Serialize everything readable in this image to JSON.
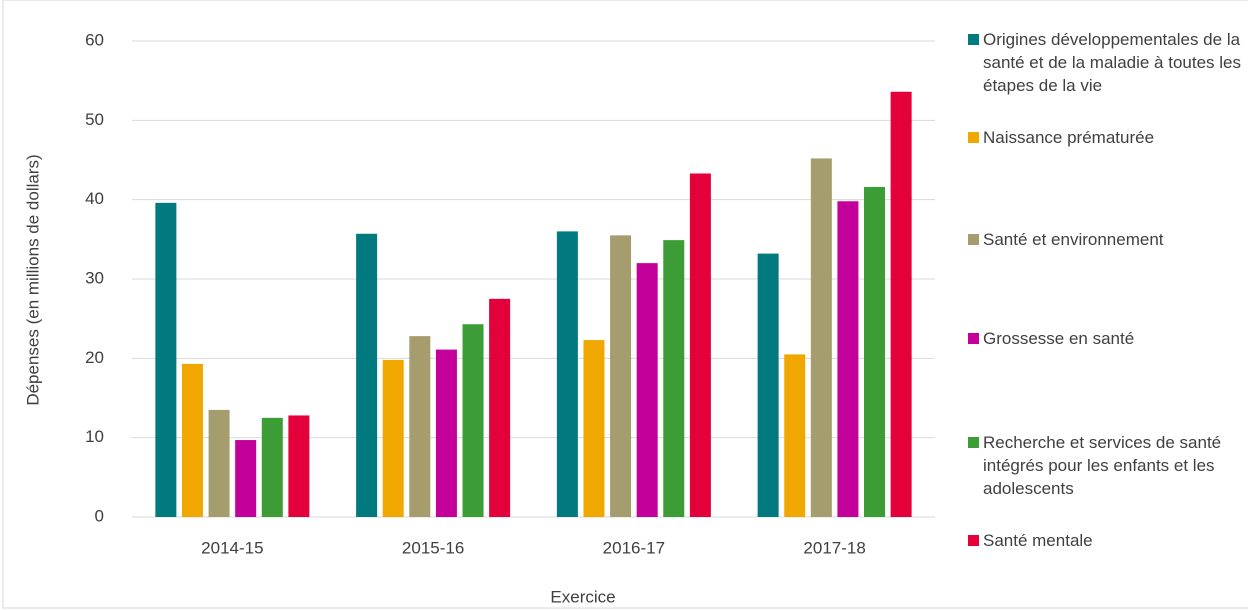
{
  "chart_data": {
    "type": "bar",
    "x_label": "Exercice",
    "y_label": "Dépenses (en millions de dollars)",
    "categories": [
      "2014-15",
      "2015-16",
      "2016-17",
      "2017-18"
    ],
    "series": [
      {
        "name": "Origines développementales de la santé et de la maladie à toutes les étapes de la vie",
        "color": "#00797f",
        "values": [
          39.6,
          35.7,
          36.0,
          33.2
        ]
      },
      {
        "name": "Naissance prématurée",
        "color": "#f0a800",
        "values": [
          19.3,
          19.8,
          22.3,
          20.5
        ]
      },
      {
        "name": "Santé et environnement",
        "color": "#a59d6e",
        "values": [
          13.5,
          22.8,
          35.5,
          45.2
        ]
      },
      {
        "name": "Grossesse en santé",
        "color": "#c4009a",
        "values": [
          9.7,
          21.1,
          32.0,
          39.8
        ]
      },
      {
        "name": "Recherche et services de santé intégrés pour les enfants et les adolescents",
        "color": "#3c9c36",
        "values": [
          12.5,
          24.3,
          34.9,
          41.6
        ]
      },
      {
        "name": "Santé mentale",
        "color": "#e4003b",
        "values": [
          12.8,
          27.5,
          43.3,
          53.6
        ]
      }
    ],
    "ylim": [
      0,
      60
    ],
    "yticks": [
      0,
      10,
      20,
      30,
      40,
      50,
      60
    ],
    "grid": true
  }
}
